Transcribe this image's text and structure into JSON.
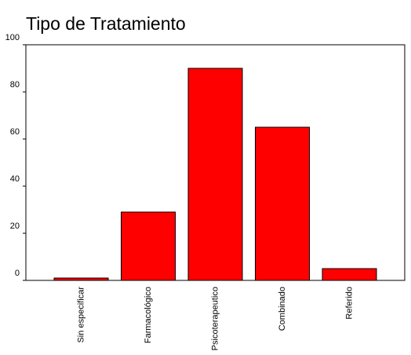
{
  "chart_data": {
    "type": "bar",
    "title": "Tipo de Tratamiento",
    "categories": [
      "Sin especificar",
      "Farmacológico",
      "Psicoterapeutico",
      "Combinado",
      "Referido"
    ],
    "values": [
      1,
      29,
      90,
      65,
      5
    ],
    "color": "#ff0000",
    "ylim": [
      0,
      100
    ],
    "yticks": [
      0,
      20,
      40,
      60,
      80,
      100
    ],
    "grid": false
  }
}
